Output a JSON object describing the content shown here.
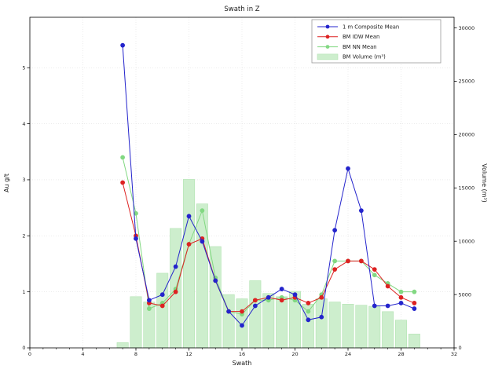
{
  "chart_data": {
    "type": "line+bar",
    "title": "Swath in Z",
    "xlabel": "Swath",
    "ylabel_left": "Au g/t",
    "ylabel_right": "Volume (m³)",
    "x": [
      7,
      8,
      9,
      10,
      11,
      12,
      13,
      14,
      15,
      16,
      17,
      18,
      19,
      20,
      21,
      22,
      23,
      24,
      25,
      26,
      27,
      28,
      29
    ],
    "series": [
      {
        "name": "1 m Composite Mean",
        "color": "#2424cc",
        "axis": "left",
        "values": [
          5.4,
          1.95,
          0.85,
          0.95,
          1.45,
          2.35,
          1.9,
          1.2,
          0.65,
          0.4,
          0.75,
          0.9,
          1.05,
          0.95,
          0.5,
          0.55,
          2.1,
          3.2,
          2.45,
          0.75,
          0.75,
          0.8,
          0.7
        ]
      },
      {
        "name": "BM IDW Mean",
        "color": "#dd2222",
        "axis": "left",
        "values": [
          2.95,
          2.0,
          0.8,
          0.75,
          1.0,
          1.85,
          1.95,
          1.2,
          0.65,
          0.65,
          0.85,
          0.9,
          0.85,
          0.9,
          0.8,
          0.9,
          1.4,
          1.55,
          1.55,
          1.4,
          1.1,
          0.9,
          0.8
        ]
      },
      {
        "name": "BM NN Mean",
        "color": "#82d882",
        "axis": "left",
        "values": [
          3.4,
          2.4,
          0.7,
          0.8,
          1.05,
          1.85,
          2.45,
          1.25,
          0.65,
          0.6,
          0.85,
          0.85,
          0.9,
          0.85,
          0.65,
          0.95,
          1.55,
          1.55,
          1.55,
          1.3,
          1.15,
          1.0,
          1.0
        ]
      }
    ],
    "bars": {
      "name": "BM Volume (m³)",
      "fill": "#cdeecd",
      "edge": "#b2e3b2",
      "axis": "right",
      "values": [
        500,
        4800,
        4300,
        7000,
        11200,
        15800,
        13500,
        9500,
        5000,
        4600,
        6300,
        5100,
        4800,
        5300,
        4100,
        4600,
        4300,
        4100,
        4000,
        3900,
        3400,
        2600,
        1300
      ]
    },
    "xlim": [
      0,
      32
    ],
    "ylim_left": [
      0,
      5.9
    ],
    "ylim_right": [
      0,
      31000
    ],
    "xticks": [
      0,
      4,
      8,
      12,
      16,
      20,
      24,
      28,
      32
    ],
    "yticks_left": [
      0,
      1,
      2,
      3,
      4,
      5
    ],
    "yticks_right": [
      0,
      5000,
      10000,
      15000,
      20000,
      25000,
      30000
    ],
    "grid": true,
    "legend_position": "upper right",
    "frame_color": "#000000",
    "grid_color": "#e0e0e0"
  }
}
